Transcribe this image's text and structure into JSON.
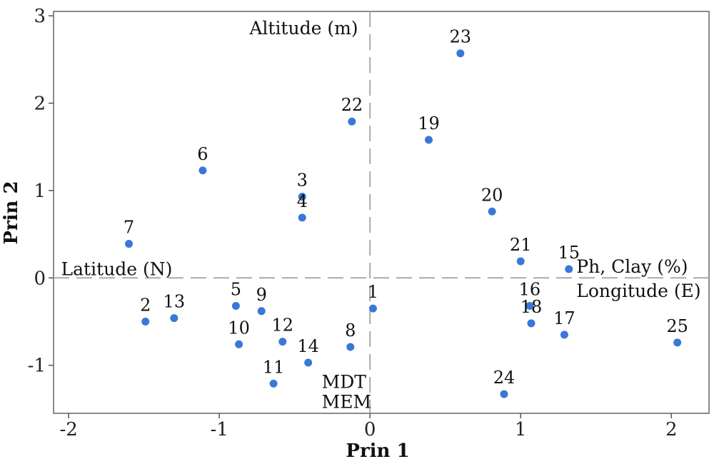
{
  "chart_data": {
    "type": "scatter",
    "xlabel": "Prin 1",
    "ylabel": "Prin 2",
    "xlim": [
      -2.1,
      2.25
    ],
    "ylim": [
      -1.55,
      3.05
    ],
    "xticks": [
      -2,
      -1,
      0,
      1,
      2
    ],
    "yticks": [
      -1,
      0,
      1,
      2,
      3
    ],
    "xtick_labels": [
      "-2",
      "-1",
      "0",
      "1",
      "2"
    ],
    "ytick_labels": [
      "-1",
      "0",
      "1",
      "2",
      "3"
    ],
    "grid": false,
    "reference_lines": {
      "x": 0,
      "y": 0,
      "style": "dashed",
      "color": "#aaaaaa"
    },
    "point_color": "#3a78d8",
    "series": [
      {
        "points": [
          {
            "label": "1",
            "x": 0.02,
            "y": -0.35
          },
          {
            "label": "2",
            "x": -1.49,
            "y": -0.5
          },
          {
            "label": "3",
            "x": -0.45,
            "y": 0.93
          },
          {
            "label": "4",
            "x": -0.45,
            "y": 0.69
          },
          {
            "label": "5",
            "x": -0.89,
            "y": -0.32
          },
          {
            "label": "6",
            "x": -1.11,
            "y": 1.23
          },
          {
            "label": "7",
            "x": -1.6,
            "y": 0.39
          },
          {
            "label": "8",
            "x": -0.13,
            "y": -0.79
          },
          {
            "label": "9",
            "x": -0.72,
            "y": -0.38
          },
          {
            "label": "10",
            "x": -0.87,
            "y": -0.76
          },
          {
            "label": "11",
            "x": -0.64,
            "y": -1.21
          },
          {
            "label": "12",
            "x": -0.58,
            "y": -0.73
          },
          {
            "label": "13",
            "x": -1.3,
            "y": -0.46
          },
          {
            "label": "14",
            "x": -0.41,
            "y": -0.97
          },
          {
            "label": "15",
            "x": 1.32,
            "y": 0.1
          },
          {
            "label": "16",
            "x": 1.06,
            "y": -0.32
          },
          {
            "label": "17",
            "x": 1.29,
            "y": -0.65
          },
          {
            "label": "18",
            "x": 1.07,
            "y": -0.52
          },
          {
            "label": "19",
            "x": 0.39,
            "y": 1.58
          },
          {
            "label": "20",
            "x": 0.81,
            "y": 0.76
          },
          {
            "label": "21",
            "x": 1.0,
            "y": 0.19
          },
          {
            "label": "22",
            "x": -0.12,
            "y": 1.79
          },
          {
            "label": "23",
            "x": 0.6,
            "y": 2.57
          },
          {
            "label": "24",
            "x": 0.89,
            "y": -1.33
          },
          {
            "label": "25",
            "x": 2.04,
            "y": -0.74
          }
        ]
      }
    ],
    "annotations": [
      {
        "text": "Altitude (m)",
        "x": -0.8,
        "y": 2.79,
        "anchor": "start"
      },
      {
        "text": "Latitude (N)",
        "x": -2.05,
        "y": 0.03,
        "anchor": "start"
      },
      {
        "text": "Ph, Clay (%)",
        "x": 1.37,
        "y": 0.06,
        "anchor": "start"
      },
      {
        "text": "Longitude (E)",
        "x": 1.37,
        "y": -0.22,
        "anchor": "start"
      },
      {
        "text": "MDT",
        "x": -0.32,
        "y": -1.26,
        "anchor": "start"
      },
      {
        "text": "MEM",
        "x": -0.32,
        "y": -1.49,
        "anchor": "start"
      }
    ]
  }
}
